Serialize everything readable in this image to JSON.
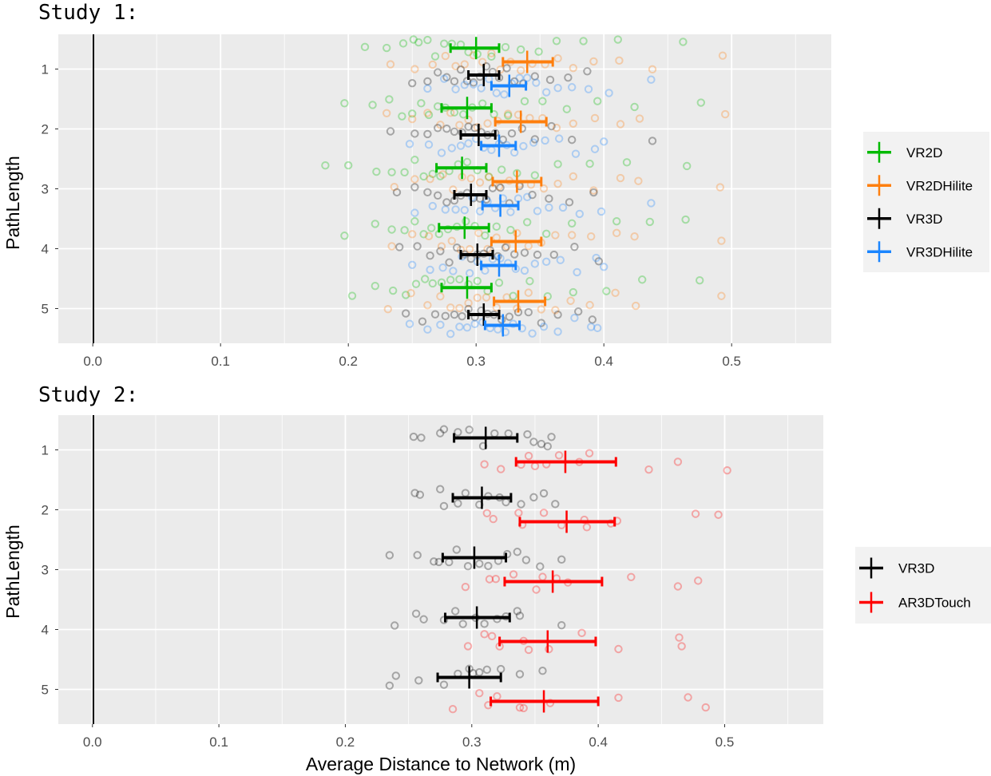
{
  "chart_data": [
    {
      "type": "scatter",
      "title": "Study 1:",
      "xlabel": "",
      "ylabel": "PathLength",
      "xlim": [
        -0.027,
        0.578
      ],
      "ylim": [
        0.42,
        5.58
      ],
      "grid": true,
      "legend_position": "right",
      "x_ticks": [
        "0.0",
        "0.1",
        "0.2",
        "0.3",
        "0.4",
        "0.5"
      ],
      "categories": [
        "1",
        "2",
        "3",
        "4",
        "5"
      ],
      "series": [
        {
          "name": "VR2D",
          "color": "#00ba00",
          "offset": -0.35,
          "means": [
            0.3,
            0.293,
            0.289,
            0.291,
            0.293
          ],
          "ci_low": [
            0.28,
            0.273,
            0.269,
            0.271,
            0.273
          ],
          "ci_high": [
            0.318,
            0.312,
            0.308,
            0.31,
            0.312
          ],
          "points": [
            [
              0.213,
              0.23,
              0.243,
              0.251,
              0.255,
              0.262,
              0.268,
              0.275,
              0.281,
              0.288,
              0.294,
              0.301,
              0.312,
              0.323,
              0.335,
              0.349,
              0.363,
              0.384,
              0.411,
              0.462
            ],
            [
              0.197,
              0.219,
              0.232,
              0.242,
              0.25,
              0.257,
              0.263,
              0.27,
              0.276,
              0.283,
              0.29,
              0.297,
              0.305,
              0.314,
              0.325,
              0.338,
              0.352,
              0.371,
              0.395,
              0.424,
              0.476
            ],
            [
              0.182,
              0.2,
              0.222,
              0.234,
              0.244,
              0.252,
              0.259,
              0.266,
              0.272,
              0.279,
              0.286,
              0.293,
              0.301,
              0.31,
              0.32,
              0.332,
              0.346,
              0.364,
              0.389,
              0.418,
              0.465
            ],
            [
              0.197,
              0.221,
              0.234,
              0.244,
              0.252,
              0.259,
              0.265,
              0.271,
              0.278,
              0.285,
              0.292,
              0.299,
              0.307,
              0.316,
              0.327,
              0.34,
              0.355,
              0.375,
              0.41,
              0.436,
              0.464
            ],
            [
              0.203,
              0.221,
              0.235,
              0.245,
              0.253,
              0.26,
              0.266,
              0.273,
              0.28,
              0.287,
              0.294,
              0.301,
              0.309,
              0.318,
              0.329,
              0.342,
              0.356,
              0.376,
              0.402,
              0.43,
              0.475
            ]
          ]
        },
        {
          "name": "VR2DHilite",
          "color": "#fe7f0e",
          "offset": -0.12,
          "means": [
            0.34,
            0.335,
            0.332,
            0.331,
            0.333
          ],
          "ci_low": [
            0.321,
            0.315,
            0.313,
            0.312,
            0.314
          ],
          "ci_high": [
            0.36,
            0.355,
            0.351,
            0.351,
            0.354
          ],
          "points": [
            [
              0.233,
              0.252,
              0.266,
              0.276,
              0.284,
              0.291,
              0.298,
              0.305,
              0.312,
              0.319,
              0.327,
              0.335,
              0.344,
              0.354,
              0.364,
              0.376,
              0.392,
              0.412,
              0.438,
              0.493
            ],
            [
              0.23,
              0.25,
              0.262,
              0.272,
              0.28,
              0.287,
              0.294,
              0.301,
              0.309,
              0.317,
              0.325,
              0.333,
              0.342,
              0.352,
              0.363,
              0.376,
              0.393,
              0.413,
              0.428,
              0.495
            ],
            [
              0.236,
              0.252,
              0.264,
              0.274,
              0.282,
              0.289,
              0.296,
              0.303,
              0.31,
              0.318,
              0.326,
              0.334,
              0.343,
              0.353,
              0.364,
              0.376,
              0.392,
              0.413,
              0.427,
              0.491
            ],
            [
              0.234,
              0.25,
              0.263,
              0.273,
              0.281,
              0.288,
              0.295,
              0.302,
              0.309,
              0.316,
              0.324,
              0.332,
              0.341,
              0.351,
              0.362,
              0.375,
              0.39,
              0.41,
              0.424,
              0.492
            ],
            [
              0.231,
              0.249,
              0.262,
              0.272,
              0.28,
              0.287,
              0.294,
              0.301,
              0.308,
              0.316,
              0.324,
              0.332,
              0.341,
              0.351,
              0.362,
              0.374,
              0.389,
              0.409,
              0.425,
              0.492
            ]
          ]
        },
        {
          "name": "VR3D",
          "color": "#000000",
          "offset": 0.1,
          "means": [
            0.306,
            0.302,
            0.296,
            0.301,
            0.306
          ],
          "ci_low": [
            0.294,
            0.288,
            0.283,
            0.288,
            0.294
          ],
          "ci_high": [
            0.318,
            0.315,
            0.308,
            0.313,
            0.318
          ],
          "points": [
            [
              0.25,
              0.262,
              0.27,
              0.277,
              0.283,
              0.288,
              0.293,
              0.298,
              0.303,
              0.308,
              0.313,
              0.318,
              0.324,
              0.33,
              0.337,
              0.346,
              0.358,
              0.372,
              0.387
            ],
            [
              0.233,
              0.252,
              0.262,
              0.27,
              0.277,
              0.283,
              0.289,
              0.294,
              0.299,
              0.304,
              0.309,
              0.315,
              0.321,
              0.328,
              0.336,
              0.346,
              0.359,
              0.375,
              0.438
            ],
            [
              0.238,
              0.252,
              0.262,
              0.27,
              0.277,
              0.283,
              0.288,
              0.293,
              0.298,
              0.303,
              0.308,
              0.313,
              0.319,
              0.326,
              0.334,
              0.344,
              0.357,
              0.373,
              0.392
            ],
            [
              0.24,
              0.254,
              0.264,
              0.272,
              0.279,
              0.285,
              0.291,
              0.296,
              0.301,
              0.306,
              0.311,
              0.317,
              0.323,
              0.33,
              0.338,
              0.348,
              0.361,
              0.377,
              0.396
            ],
            [
              0.245,
              0.258,
              0.268,
              0.276,
              0.283,
              0.289,
              0.294,
              0.299,
              0.304,
              0.309,
              0.314,
              0.32,
              0.326,
              0.333,
              0.341,
              0.351,
              0.364,
              0.38,
              0.391
            ]
          ]
        },
        {
          "name": "VR3DHilite",
          "color": "#1a85ff",
          "offset": 0.28,
          "means": [
            0.326,
            0.318,
            0.319,
            0.318,
            0.321
          ],
          "ci_low": [
            0.312,
            0.304,
            0.305,
            0.304,
            0.307
          ],
          "ci_high": [
            0.339,
            0.331,
            0.333,
            0.331,
            0.334
          ],
          "points": [
            [
              0.262,
              0.275,
              0.284,
              0.291,
              0.298,
              0.304,
              0.31,
              0.316,
              0.322,
              0.328,
              0.334,
              0.34,
              0.347,
              0.355,
              0.364,
              0.375,
              0.388,
              0.404,
              0.437
            ],
            [
              0.248,
              0.263,
              0.273,
              0.281,
              0.288,
              0.294,
              0.3,
              0.306,
              0.312,
              0.318,
              0.324,
              0.33,
              0.337,
              0.345,
              0.354,
              0.365,
              0.378,
              0.393,
              0.4
            ],
            [
              0.252,
              0.266,
              0.276,
              0.284,
              0.291,
              0.297,
              0.303,
              0.309,
              0.315,
              0.321,
              0.327,
              0.333,
              0.34,
              0.348,
              0.357,
              0.368,
              0.381,
              0.398,
              0.437
            ],
            [
              0.25,
              0.264,
              0.274,
              0.282,
              0.289,
              0.295,
              0.301,
              0.307,
              0.313,
              0.319,
              0.325,
              0.331,
              0.338,
              0.346,
              0.355,
              0.366,
              0.379,
              0.394,
              0.4
            ],
            [
              0.248,
              0.262,
              0.272,
              0.28,
              0.287,
              0.293,
              0.299,
              0.305,
              0.311,
              0.317,
              0.323,
              0.329,
              0.336,
              0.344,
              0.353,
              0.364,
              0.377,
              0.39,
              0.395
            ]
          ]
        }
      ]
    },
    {
      "type": "scatter",
      "title": "Study 2:",
      "xlabel": "Average Distance to Network (m)",
      "ylabel": "PathLength",
      "xlim": [
        -0.027,
        0.578
      ],
      "ylim": [
        0.42,
        5.58
      ],
      "grid": true,
      "legend_position": "right",
      "x_ticks": [
        "0.0",
        "0.1",
        "0.2",
        "0.3",
        "0.4",
        "0.5"
      ],
      "categories": [
        "1",
        "2",
        "3",
        "4",
        "5"
      ],
      "series": [
        {
          "name": "VR3D",
          "color": "#000000",
          "offset": -0.2,
          "means": [
            0.311,
            0.308,
            0.302,
            0.304,
            0.298
          ],
          "ci_low": [
            0.286,
            0.285,
            0.277,
            0.279,
            0.273
          ],
          "ci_high": [
            0.336,
            0.331,
            0.327,
            0.33,
            0.323
          ],
          "points": [
            [
              0.254,
              0.26,
              0.275,
              0.278,
              0.289,
              0.298,
              0.309,
              0.318,
              0.329,
              0.344,
              0.349,
              0.355,
              0.36,
              0.363
            ],
            [
              0.255,
              0.259,
              0.275,
              0.278,
              0.289,
              0.295,
              0.306,
              0.313,
              0.322,
              0.327,
              0.339,
              0.349,
              0.357,
              0.366
            ],
            [
              0.235,
              0.257,
              0.27,
              0.274,
              0.282,
              0.288,
              0.297,
              0.306,
              0.313,
              0.321,
              0.328,
              0.336,
              0.343,
              0.354,
              0.371
            ],
            [
              0.239,
              0.256,
              0.262,
              0.278,
              0.287,
              0.293,
              0.303,
              0.31,
              0.32,
              0.327,
              0.336,
              0.338,
              0.371
            ],
            [
              0.235,
              0.24,
              0.258,
              0.278,
              0.289,
              0.298,
              0.301,
              0.306,
              0.312,
              0.323,
              0.338,
              0.356
            ]
          ]
        },
        {
          "name": "AR3DTouch",
          "color": "#ff0000",
          "offset": 0.2,
          "means": [
            0.374,
            0.375,
            0.364,
            0.36,
            0.357
          ],
          "ci_low": [
            0.335,
            0.338,
            0.326,
            0.322,
            0.315
          ],
          "ci_high": [
            0.414,
            0.413,
            0.403,
            0.398,
            0.4
          ],
          "points": [
            [
              0.31,
              0.323,
              0.339,
              0.345,
              0.35,
              0.359,
              0.369,
              0.385,
              0.393,
              0.44,
              0.463,
              0.502
            ],
            [
              0.312,
              0.317,
              0.337,
              0.34,
              0.357,
              0.371,
              0.389,
              0.391,
              0.41,
              0.415,
              0.477,
              0.495
            ],
            [
              0.295,
              0.314,
              0.319,
              0.333,
              0.351,
              0.356,
              0.367,
              0.376,
              0.426,
              0.463,
              0.479
            ],
            [
              0.297,
              0.31,
              0.316,
              0.322,
              0.341,
              0.345,
              0.361,
              0.387,
              0.416,
              0.464,
              0.466
            ],
            [
              0.285,
              0.306,
              0.313,
              0.32,
              0.338,
              0.341,
              0.362,
              0.416,
              0.471,
              0.485
            ]
          ]
        }
      ]
    }
  ]
}
